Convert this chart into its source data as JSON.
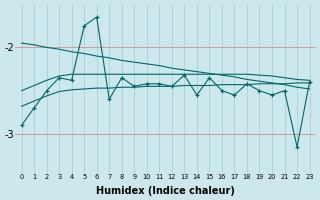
{
  "xlabel": "Humidex (Indice chaleur)",
  "x": [
    0,
    1,
    2,
    3,
    4,
    5,
    6,
    7,
    8,
    9,
    10,
    11,
    12,
    13,
    14,
    15,
    16,
    17,
    18,
    19,
    20,
    21,
    22,
    23
  ],
  "jagged": [
    -2.9,
    -2.7,
    -2.5,
    -2.35,
    -2.38,
    -1.75,
    -1.65,
    -2.6,
    -2.35,
    -2.45,
    -2.42,
    -2.42,
    -2.45,
    -2.32,
    -2.55,
    -2.35,
    -2.5,
    -2.55,
    -2.42,
    -2.5,
    -2.55,
    -2.5,
    -3.15,
    -2.4
  ],
  "upper_descent": [
    -1.95,
    -1.97,
    -2.0,
    -2.02,
    -2.05,
    -2.07,
    -2.1,
    -2.12,
    -2.15,
    -2.17,
    -2.19,
    -2.21,
    -2.24,
    -2.26,
    -2.28,
    -2.3,
    -2.32,
    -2.34,
    -2.37,
    -2.39,
    -2.41,
    -2.43,
    -2.46,
    -2.48
  ],
  "mid_upper": [
    -2.5,
    -2.44,
    -2.38,
    -2.33,
    -2.31,
    -2.31,
    -2.31,
    -2.31,
    -2.31,
    -2.31,
    -2.31,
    -2.31,
    -2.31,
    -2.31,
    -2.31,
    -2.31,
    -2.31,
    -2.31,
    -2.31,
    -2.32,
    -2.33,
    -2.35,
    -2.37,
    -2.38
  ],
  "mid_lower": [
    -2.68,
    -2.62,
    -2.56,
    -2.51,
    -2.49,
    -2.48,
    -2.47,
    -2.47,
    -2.46,
    -2.46,
    -2.45,
    -2.45,
    -2.45,
    -2.44,
    -2.44,
    -2.44,
    -2.43,
    -2.43,
    -2.43,
    -2.42,
    -2.42,
    -2.42,
    -2.41,
    -2.41
  ],
  "bg_color": "#cce8ed",
  "vgrid_color": "#aad0d8",
  "hgrid_color": "#d09090",
  "line_color": "#006666",
  "ylim": [
    -3.45,
    -1.5
  ],
  "yticks": [
    -3.0,
    -2.0
  ],
  "xlim": [
    -0.5,
    23.5
  ],
  "figsize": [
    3.2,
    2.0
  ],
  "dpi": 100
}
